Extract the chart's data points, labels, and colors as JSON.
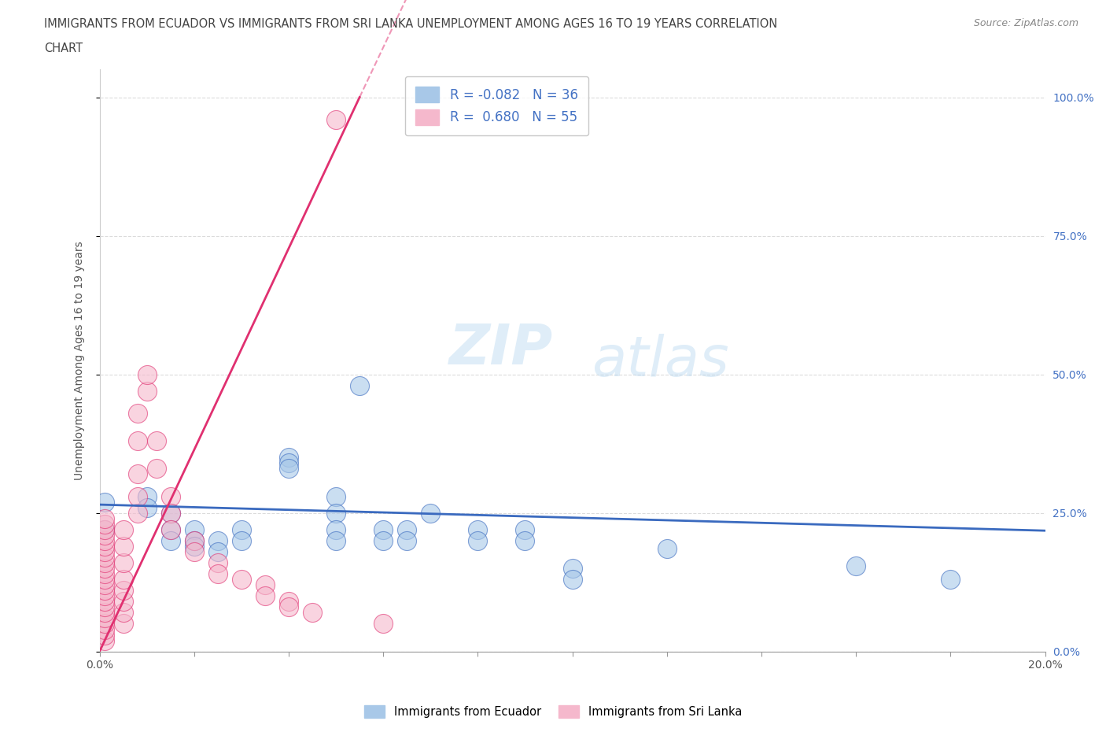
{
  "title_line1": "IMMIGRANTS FROM ECUADOR VS IMMIGRANTS FROM SRI LANKA UNEMPLOYMENT AMONG AGES 16 TO 19 YEARS CORRELATION",
  "title_line2": "CHART",
  "source": "Source: ZipAtlas.com",
  "ylabel": "Unemployment Among Ages 16 to 19 years",
  "legend_bottom": [
    "Immigrants from Ecuador",
    "Immigrants from Sri Lanka"
  ],
  "R_ecuador": -0.082,
  "N_ecuador": 36,
  "R_srilanka": 0.68,
  "N_srilanka": 55,
  "color_ecuador": "#a8c8e8",
  "color_srilanka": "#f5b8cc",
  "line_color_ecuador": "#3a6abf",
  "line_color_srilanka": "#e03070",
  "xmin": 0.0,
  "xmax": 0.2,
  "ymin": 0.0,
  "ymax": 1.05,
  "ecuador_points": [
    [
      0.001,
      0.27
    ],
    [
      0.001,
      0.22
    ],
    [
      0.01,
      0.28
    ],
    [
      0.01,
      0.26
    ],
    [
      0.015,
      0.25
    ],
    [
      0.015,
      0.22
    ],
    [
      0.015,
      0.2
    ],
    [
      0.02,
      0.22
    ],
    [
      0.02,
      0.2
    ],
    [
      0.02,
      0.19
    ],
    [
      0.025,
      0.2
    ],
    [
      0.025,
      0.18
    ],
    [
      0.03,
      0.22
    ],
    [
      0.03,
      0.2
    ],
    [
      0.04,
      0.35
    ],
    [
      0.04,
      0.34
    ],
    [
      0.04,
      0.33
    ],
    [
      0.05,
      0.28
    ],
    [
      0.05,
      0.25
    ],
    [
      0.05,
      0.22
    ],
    [
      0.05,
      0.2
    ],
    [
      0.055,
      0.48
    ],
    [
      0.06,
      0.22
    ],
    [
      0.06,
      0.2
    ],
    [
      0.065,
      0.22
    ],
    [
      0.065,
      0.2
    ],
    [
      0.07,
      0.25
    ],
    [
      0.08,
      0.22
    ],
    [
      0.08,
      0.2
    ],
    [
      0.09,
      0.22
    ],
    [
      0.09,
      0.2
    ],
    [
      0.1,
      0.15
    ],
    [
      0.1,
      0.13
    ],
    [
      0.12,
      0.185
    ],
    [
      0.16,
      0.155
    ],
    [
      0.18,
      0.13
    ]
  ],
  "srilanka_points": [
    [
      0.001,
      0.02
    ],
    [
      0.001,
      0.03
    ],
    [
      0.001,
      0.04
    ],
    [
      0.001,
      0.05
    ],
    [
      0.001,
      0.06
    ],
    [
      0.001,
      0.07
    ],
    [
      0.001,
      0.08
    ],
    [
      0.001,
      0.09
    ],
    [
      0.001,
      0.1
    ],
    [
      0.001,
      0.11
    ],
    [
      0.001,
      0.12
    ],
    [
      0.001,
      0.13
    ],
    [
      0.001,
      0.14
    ],
    [
      0.001,
      0.15
    ],
    [
      0.001,
      0.16
    ],
    [
      0.001,
      0.17
    ],
    [
      0.001,
      0.18
    ],
    [
      0.001,
      0.19
    ],
    [
      0.001,
      0.2
    ],
    [
      0.001,
      0.21
    ],
    [
      0.001,
      0.22
    ],
    [
      0.001,
      0.23
    ],
    [
      0.001,
      0.24
    ],
    [
      0.005,
      0.05
    ],
    [
      0.005,
      0.07
    ],
    [
      0.005,
      0.09
    ],
    [
      0.005,
      0.11
    ],
    [
      0.005,
      0.13
    ],
    [
      0.005,
      0.16
    ],
    [
      0.005,
      0.19
    ],
    [
      0.005,
      0.22
    ],
    [
      0.008,
      0.25
    ],
    [
      0.008,
      0.28
    ],
    [
      0.008,
      0.32
    ],
    [
      0.008,
      0.38
    ],
    [
      0.008,
      0.43
    ],
    [
      0.01,
      0.47
    ],
    [
      0.01,
      0.5
    ],
    [
      0.012,
      0.38
    ],
    [
      0.012,
      0.33
    ],
    [
      0.015,
      0.28
    ],
    [
      0.015,
      0.25
    ],
    [
      0.015,
      0.22
    ],
    [
      0.02,
      0.2
    ],
    [
      0.02,
      0.18
    ],
    [
      0.025,
      0.16
    ],
    [
      0.025,
      0.14
    ],
    [
      0.03,
      0.13
    ],
    [
      0.035,
      0.12
    ],
    [
      0.035,
      0.1
    ],
    [
      0.04,
      0.09
    ],
    [
      0.04,
      0.08
    ],
    [
      0.045,
      0.07
    ],
    [
      0.05,
      0.96
    ],
    [
      0.06,
      0.05
    ]
  ],
  "srilanka_trend_x": [
    0.0,
    0.07
  ],
  "srilanka_trend_y": [
    0.0,
    1.05
  ]
}
